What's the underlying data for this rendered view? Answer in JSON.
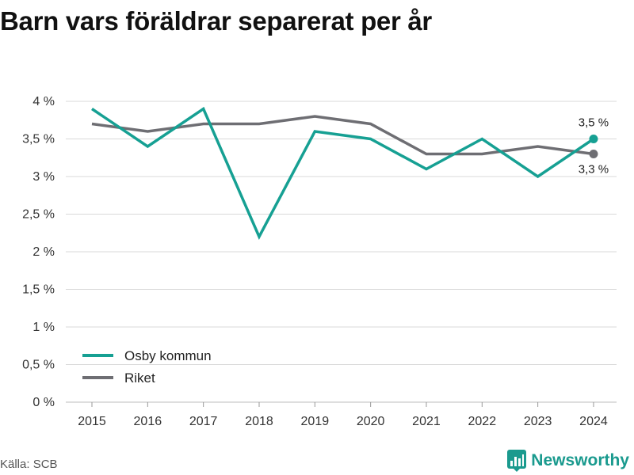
{
  "title": "Barn vars föräldrar separerat per år",
  "source": "Källa: SCB",
  "brand": {
    "name": "Newsworthy",
    "icon": "bar-chart-logo-icon"
  },
  "colors": {
    "osby": "#16a093",
    "riket": "#6e6e73",
    "grid": "#d9d9d9",
    "brand": "#1a9a8e"
  },
  "chart_data": {
    "type": "line",
    "x": [
      "2015",
      "2016",
      "2017",
      "2018",
      "2019",
      "2020",
      "2021",
      "2022",
      "2023",
      "2024"
    ],
    "series": [
      {
        "name": "Osby kommun",
        "color": "#16a093",
        "values": [
          3.9,
          3.4,
          3.9,
          2.2,
          3.6,
          3.5,
          3.1,
          3.5,
          3.0,
          3.5
        ],
        "end_label": "3,5 %"
      },
      {
        "name": "Riket",
        "color": "#6e6e73",
        "values": [
          3.7,
          3.6,
          3.7,
          3.7,
          3.8,
          3.7,
          3.3,
          3.3,
          3.4,
          3.3
        ],
        "end_label": "3,3 %"
      }
    ],
    "yticks": [
      0,
      0.5,
      1,
      1.5,
      2,
      2.5,
      3,
      3.5,
      4
    ],
    "ytick_labels": [
      "0 %",
      "0,5 %",
      "1 %",
      "1,5 %",
      "2 %",
      "2,5 %",
      "3 %",
      "3,5 %",
      "4 %"
    ],
    "ylim": [
      0,
      4
    ],
    "grid": true,
    "legend_position": "bottom-left"
  }
}
